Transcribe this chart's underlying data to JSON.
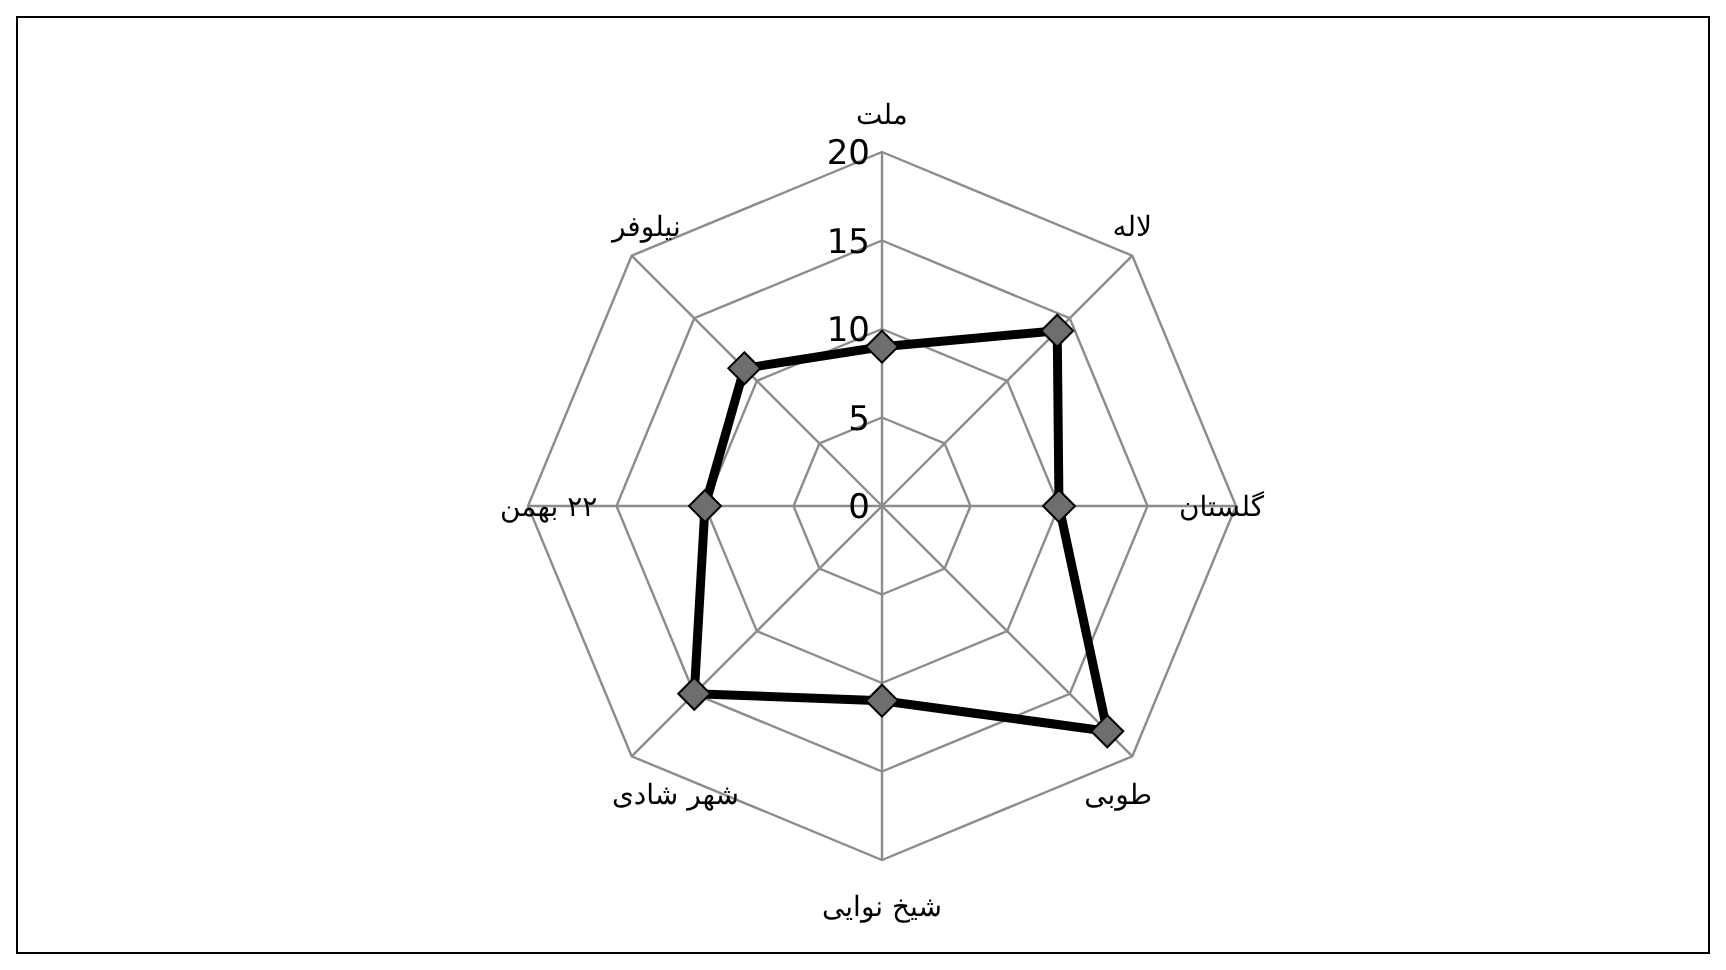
{
  "chart_data": {
    "type": "radar",
    "categories": [
      "ملت",
      "لاله",
      "گلستان",
      "طوبی",
      "شیخ نوایی",
      "شهر شادی",
      "۲۲ بهمن",
      "نیلوفر"
    ],
    "series": [
      {
        "color": "#000000",
        "values": [
          9,
          14,
          10,
          18,
          11,
          15,
          10,
          11
        ]
      }
    ],
    "ylim": [
      0,
      20
    ],
    "yticks": [
      0,
      5,
      10,
      15,
      20
    ],
    "grid": true,
    "marker": "diamond",
    "line_style": "solid"
  }
}
